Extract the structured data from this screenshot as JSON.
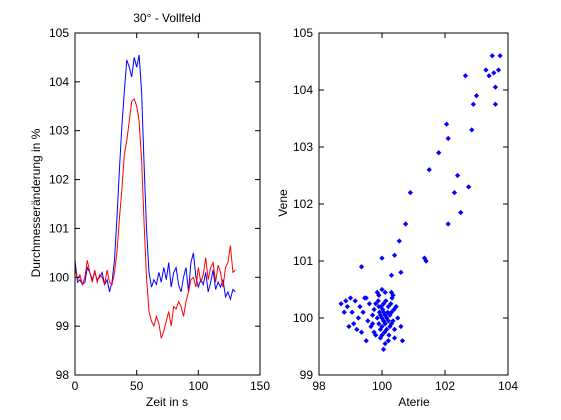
{
  "chart_data": [
    {
      "type": "line",
      "title": "30° - Vollfeld",
      "xlabel": "Zeit in s",
      "ylabel": "Durchmesserände­rung in %",
      "xlim": [
        0,
        150
      ],
      "ylim": [
        98,
        105
      ],
      "xticks": [
        "0",
        "50",
        "100",
        "150"
      ],
      "yticks": [
        "98",
        "99",
        "100",
        "101",
        "102",
        "103",
        "104",
        "105"
      ],
      "grid": false,
      "series": [
        {
          "color": "#0000ff",
          "x": [
            0,
            2,
            4,
            6,
            8,
            10,
            12,
            14,
            16,
            18,
            20,
            22,
            24,
            26,
            28,
            30,
            32,
            34,
            36,
            38,
            40,
            42,
            44,
            46,
            48,
            50,
            52,
            54,
            56,
            58,
            60,
            62,
            64,
            66,
            68,
            70,
            72,
            74,
            76,
            78,
            80,
            82,
            84,
            86,
            88,
            90,
            92,
            94,
            96,
            98,
            100,
            102,
            104,
            106,
            108,
            110,
            112,
            114,
            116,
            118,
            120,
            122,
            124,
            126,
            128,
            130
          ],
          "y": [
            100.35,
            99.9,
            99.95,
            99.85,
            99.9,
            100.2,
            100.1,
            99.95,
            100.1,
            99.95,
            100.0,
            100.1,
            99.85,
            99.95,
            99.7,
            99.9,
            100.35,
            101.2,
            102.2,
            103.1,
            103.8,
            104.45,
            104.3,
            104.1,
            104.5,
            104.3,
            104.55,
            103.8,
            102.3,
            101.0,
            100.1,
            99.8,
            99.95,
            99.85,
            100.1,
            99.9,
            100.2,
            99.95,
            100.3,
            99.8,
            100.1,
            100.2,
            99.85,
            99.7,
            100.0,
            100.2,
            99.7,
            100.3,
            100.5,
            100.0,
            99.8,
            99.95,
            99.85,
            100.1,
            99.7,
            99.9,
            100.15,
            99.75,
            99.9,
            99.8,
            99.95,
            99.6,
            99.7,
            99.55,
            99.75,
            99.7
          ]
        },
        {
          "color": "#ff0000",
          "x": [
            0,
            2,
            4,
            6,
            8,
            10,
            12,
            14,
            16,
            18,
            20,
            22,
            24,
            26,
            28,
            30,
            32,
            34,
            36,
            38,
            40,
            42,
            44,
            46,
            48,
            50,
            52,
            54,
            56,
            58,
            60,
            62,
            64,
            66,
            68,
            70,
            72,
            74,
            76,
            78,
            80,
            82,
            84,
            86,
            88,
            90,
            92,
            94,
            96,
            98,
            100,
            102,
            104,
            106,
            108,
            110,
            112,
            114,
            116,
            118,
            120,
            122,
            124,
            126,
            128,
            130
          ],
          "y": [
            100.2,
            99.95,
            100.05,
            99.85,
            100.0,
            100.35,
            100.1,
            99.9,
            100.15,
            99.9,
            100.05,
            100.0,
            99.85,
            100.15,
            99.9,
            99.85,
            100.1,
            100.5,
            101.2,
            101.8,
            102.5,
            102.8,
            103.2,
            103.6,
            103.65,
            103.5,
            103.2,
            102.4,
            101.1,
            100.0,
            99.3,
            99.1,
            99.0,
            99.2,
            99.05,
            98.75,
            98.9,
            99.1,
            99.3,
            99.0,
            99.4,
            99.35,
            99.5,
            99.4,
            99.2,
            99.5,
            99.7,
            99.95,
            100.0,
            99.8,
            100.2,
            99.9,
            100.05,
            100.4,
            99.95,
            100.2,
            100.3,
            99.9,
            100.25,
            100.1,
            99.8,
            100.2,
            100.3,
            100.65,
            100.1,
            100.15
          ]
        }
      ]
    },
    {
      "type": "scatter",
      "title": "",
      "xlabel": "Aterie",
      "ylabel": "Vene",
      "xlim": [
        98,
        104
      ],
      "ylim": [
        99,
        105
      ],
      "xticks": [
        "98",
        "100",
        "102",
        "104"
      ],
      "yticks": [
        "99",
        "100",
        "101",
        "102",
        "103",
        "104",
        "105"
      ],
      "grid": false,
      "marker_color": "#0000ff",
      "points": [
        [
          98.7,
          100.25
        ],
        [
          98.8,
          100.1
        ],
        [
          98.85,
          100.3
        ],
        [
          98.9,
          100.2
        ],
        [
          98.95,
          99.85
        ],
        [
          99.0,
          100.35
        ],
        [
          99.05,
          100.1
        ],
        [
          99.1,
          99.9
        ],
        [
          99.15,
          100.3
        ],
        [
          99.2,
          99.8
        ],
        [
          99.25,
          100.0
        ],
        [
          99.3,
          100.2
        ],
        [
          99.35,
          99.75
        ],
        [
          99.4,
          100.1
        ],
        [
          99.45,
          100.35
        ],
        [
          99.5,
          99.6
        ],
        [
          99.55,
          99.95
        ],
        [
          99.6,
          100.25
        ],
        [
          99.65,
          99.85
        ],
        [
          99.7,
          100.05
        ],
        [
          99.75,
          100.15
        ],
        [
          99.8,
          99.7
        ],
        [
          99.85,
          100.0
        ],
        [
          99.88,
          100.3
        ],
        [
          99.9,
          99.9
        ],
        [
          99.92,
          100.1
        ],
        [
          99.95,
          99.8
        ],
        [
          99.97,
          100.2
        ],
        [
          100.0,
          100.0
        ],
        [
          100.0,
          99.85
        ],
        [
          100.02,
          100.15
        ],
        [
          100.05,
          99.95
        ],
        [
          100.05,
          100.25
        ],
        [
          100.08,
          99.75
        ],
        [
          100.1,
          100.05
        ],
        [
          100.1,
          99.9
        ],
        [
          100.12,
          100.3
        ],
        [
          100.15,
          100.0
        ],
        [
          100.15,
          99.8
        ],
        [
          100.18,
          100.1
        ],
        [
          100.2,
          99.95
        ],
        [
          100.2,
          100.2
        ],
        [
          100.22,
          99.7
        ],
        [
          100.25,
          100.05
        ],
        [
          100.25,
          99.85
        ],
        [
          100.28,
          100.25
        ],
        [
          100.3,
          99.9
        ],
        [
          100.3,
          100.1
        ],
        [
          100.32,
          100.35
        ],
        [
          100.35,
          99.95
        ],
        [
          100.38,
          100.15
        ],
        [
          100.4,
          99.8
        ],
        [
          99.9,
          100.4
        ],
        [
          100.0,
          100.5
        ],
        [
          99.95,
          99.65
        ],
        [
          100.1,
          99.55
        ],
        [
          100.05,
          99.45
        ],
        [
          99.85,
          100.45
        ],
        [
          100.35,
          100.4
        ],
        [
          100.45,
          100.2
        ],
        [
          99.7,
          99.9
        ],
        [
          99.8,
          100.25
        ],
        [
          100.2,
          99.6
        ],
        [
          100.1,
          100.45
        ],
        [
          99.95,
          100.05
        ],
        [
          100.05,
          100.1
        ],
        [
          99.9,
          100.2
        ],
        [
          100.0,
          99.7
        ],
        [
          99.75,
          99.75
        ],
        [
          100.3,
          100.45
        ],
        [
          100.5,
          100.0
        ],
        [
          100.6,
          99.85
        ],
        [
          100.65,
          99.6
        ],
        [
          100.4,
          99.65
        ],
        [
          99.5,
          100.35
        ],
        [
          99.35,
          100.9
        ],
        [
          100.0,
          101.05
        ],
        [
          100.3,
          100.75
        ],
        [
          100.55,
          101.35
        ],
        [
          100.75,
          101.65
        ],
        [
          100.6,
          100.8
        ],
        [
          100.4,
          101.1
        ],
        [
          100.9,
          102.2
        ],
        [
          101.35,
          101.05
        ],
        [
          101.4,
          101.0
        ],
        [
          101.5,
          102.6
        ],
        [
          101.8,
          102.9
        ],
        [
          102.05,
          103.4
        ],
        [
          102.1,
          103.15
        ],
        [
          102.1,
          101.65
        ],
        [
          102.3,
          102.2
        ],
        [
          102.4,
          102.5
        ],
        [
          102.5,
          101.85
        ],
        [
          102.65,
          104.25
        ],
        [
          102.75,
          102.3
        ],
        [
          102.85,
          103.3
        ],
        [
          102.9,
          103.75
        ],
        [
          103.0,
          103.9
        ],
        [
          103.3,
          104.35
        ],
        [
          103.4,
          104.25
        ],
        [
          103.5,
          104.6
        ],
        [
          103.55,
          104.3
        ],
        [
          103.6,
          103.75
        ],
        [
          103.6,
          104.05
        ],
        [
          103.7,
          104.35
        ],
        [
          103.75,
          104.6
        ]
      ]
    }
  ]
}
